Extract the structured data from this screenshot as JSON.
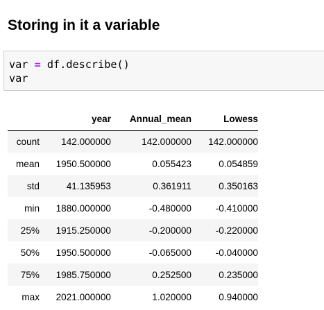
{
  "heading": "Storing in it a variable",
  "code": {
    "line1": {
      "var_name": "var",
      "space1": " ",
      "operator": "=",
      "space2": " ",
      "rhs": "df.describe()"
    },
    "line2": "var"
  },
  "table": {
    "columns": [
      "",
      "year",
      "Annual_mean",
      "Lowess"
    ],
    "rows": [
      {
        "index": "count",
        "cells": [
          "142.000000",
          "142.000000",
          "142.000000"
        ]
      },
      {
        "index": "mean",
        "cells": [
          "1950.500000",
          "0.055423",
          "0.054859"
        ]
      },
      {
        "index": "std",
        "cells": [
          "41.135953",
          "0.361911",
          "0.350163"
        ]
      },
      {
        "index": "min",
        "cells": [
          "1880.000000",
          "-0.480000",
          "-0.410000"
        ]
      },
      {
        "index": "25%",
        "cells": [
          "1915.250000",
          "-0.200000",
          "-0.220000"
        ]
      },
      {
        "index": "50%",
        "cells": [
          "1950.500000",
          "-0.065000",
          "-0.040000"
        ]
      },
      {
        "index": "75%",
        "cells": [
          "1985.750000",
          "0.252500",
          "0.235000"
        ]
      },
      {
        "index": "max",
        "cells": [
          "2021.000000",
          "1.020000",
          "0.940000"
        ]
      }
    ]
  },
  "colors": {
    "operator": "#aa22ff",
    "code_background": "#f7f7f7",
    "row_stripe": "#f5f5f5"
  }
}
